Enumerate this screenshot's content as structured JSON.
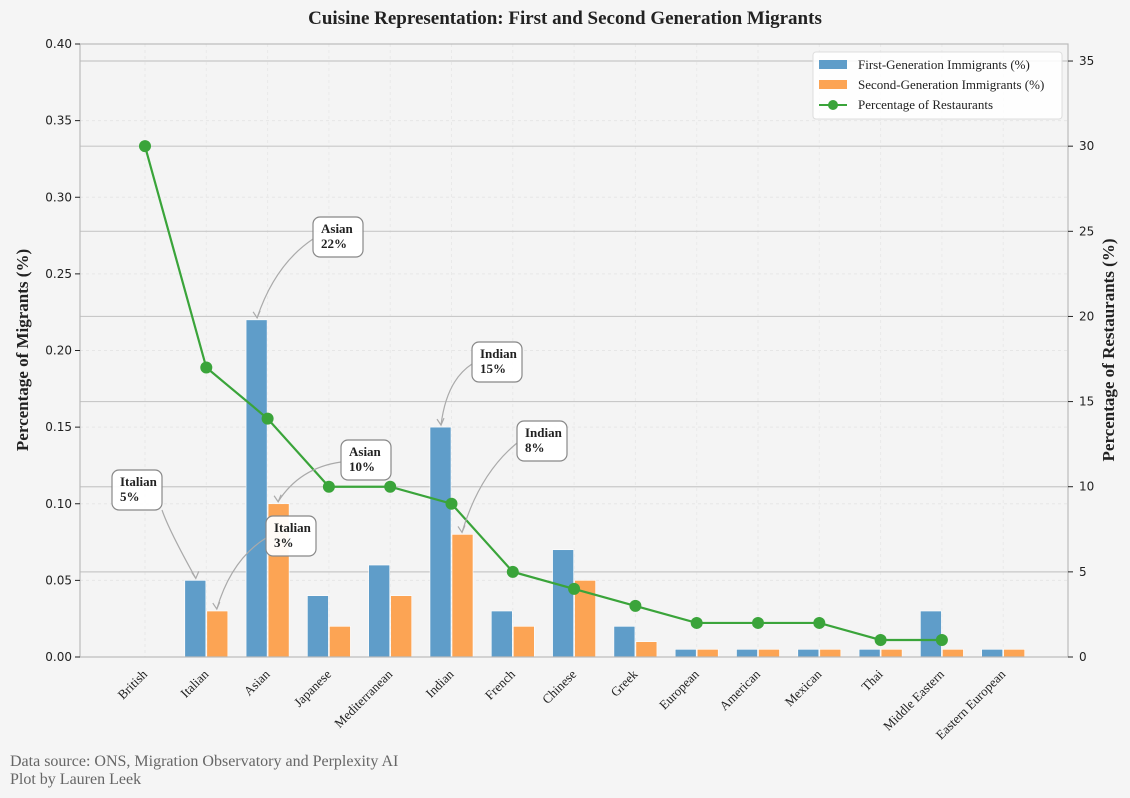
{
  "chart_data": {
    "type": "bar",
    "title": "Cuisine Representation: First and Second Generation Migrants",
    "xlabel": "",
    "ylabel": "Percentage of Migrants (%)",
    "ylabel_right": "Percentage of Restaurants (%)",
    "ylim": [
      0,
      0.4
    ],
    "ylim_right": [
      0,
      36
    ],
    "yticks": [
      "0.00",
      "0.05",
      "0.10",
      "0.15",
      "0.20",
      "0.25",
      "0.30",
      "0.35",
      "0.40"
    ],
    "yticks_right": [
      "0",
      "5",
      "10",
      "15",
      "20",
      "25",
      "30",
      "35"
    ],
    "grid": true,
    "legend_position": "top-right",
    "categories": [
      "British",
      "Italian",
      "Asian",
      "Japanese",
      "Mediterranean",
      "Indian",
      "French",
      "Chinese",
      "Greek",
      "European",
      "American",
      "Mexican",
      "Thai",
      "Middle Eastern",
      "Eastern European"
    ],
    "series": [
      {
        "name": "First-Generation Immigrants (%)",
        "type": "bar",
        "color": "#5f9dc9",
        "values": [
          0,
          0.05,
          0.22,
          0.04,
          0.06,
          0.15,
          0.03,
          0.07,
          0.02,
          0.005,
          0.005,
          0.005,
          0.005,
          0.03,
          0.005
        ]
      },
      {
        "name": "Second-Generation Immigrants (%)",
        "type": "bar",
        "color": "#fca454",
        "values": [
          0,
          0.03,
          0.1,
          0.02,
          0.04,
          0.08,
          0.02,
          0.05,
          0.01,
          0.005,
          0.005,
          0.005,
          0.005,
          0.005,
          0.005
        ]
      },
      {
        "name": "Percentage of Restaurants",
        "type": "line",
        "axis": "right",
        "color": "#3aa43a",
        "values": [
          30,
          17,
          14,
          10,
          10,
          9,
          5,
          4,
          3,
          2,
          2,
          2,
          1,
          1,
          null
        ]
      }
    ],
    "annotations": [
      {
        "line1": "Asian",
        "line2": "22%",
        "target_category": "Asian",
        "target_series": 0
      },
      {
        "line1": "Asian",
        "line2": "10%",
        "target_category": "Asian",
        "target_series": 1
      },
      {
        "line1": "Indian",
        "line2": "15%",
        "target_category": "Indian",
        "target_series": 0
      },
      {
        "line1": "Indian",
        "line2": "8%",
        "target_category": "Indian",
        "target_series": 1
      },
      {
        "line1": "Italian",
        "line2": "5%",
        "target_category": "Italian",
        "target_series": 0,
        "faded": true
      },
      {
        "line1": "Italian",
        "line2": "3%",
        "target_category": "Italian",
        "target_series": 1
      }
    ]
  },
  "footer": {
    "source": "Data source: ONS, Migration Observatory and Perplexity AI",
    "credit": "Plot by Lauren Leek"
  }
}
